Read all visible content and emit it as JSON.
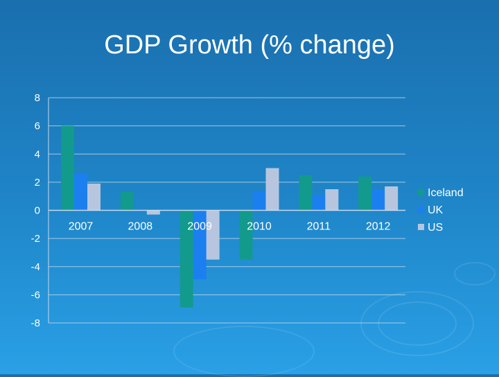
{
  "slide": {
    "title": "GDP Growth (% change)"
  },
  "colors": {
    "Iceland": "#129a8c",
    "UK": "#1b7ff0",
    "US": "#b7c6de",
    "grid": "#c9d9ea",
    "text": "#ffffff"
  },
  "chart_data": {
    "type": "bar",
    "title": "GDP Growth (% change)",
    "categories": [
      "2007",
      "2008",
      "2009",
      "2010",
      "2011",
      "2012"
    ],
    "series": [
      {
        "name": "Iceland",
        "values": [
          6.0,
          1.3,
          -6.9,
          -3.5,
          2.5,
          2.4
        ]
      },
      {
        "name": "UK",
        "values": [
          2.6,
          0.0,
          -4.9,
          1.3,
          1.1,
          1.5
        ]
      },
      {
        "name": "US",
        "values": [
          1.9,
          -0.3,
          -3.5,
          3.0,
          1.5,
          1.7
        ]
      }
    ],
    "ylim": [
      -8,
      8
    ],
    "yticks": [
      8,
      6,
      4,
      2,
      0,
      -2,
      -4,
      -6,
      -8
    ],
    "grid": true,
    "legend": "right",
    "xlabel": "",
    "ylabel": ""
  }
}
